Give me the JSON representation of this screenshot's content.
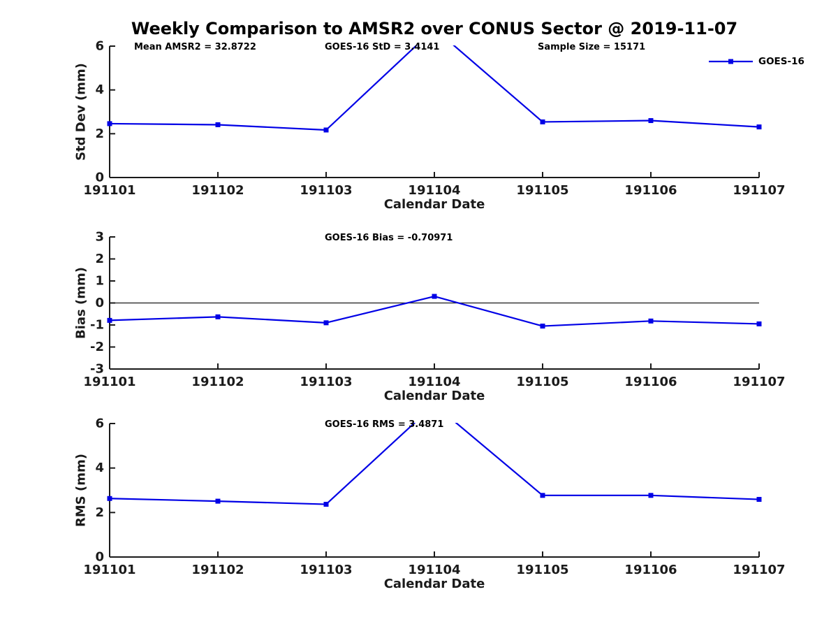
{
  "figure": {
    "title": "Weekly Comparison to AMSR2 over CONUS Sector @ 2019-11-07",
    "xlabel": "Calendar Date",
    "legend_label": "GOES-16",
    "colors": {
      "line": "#0000E6",
      "axis": "#1A1A1A",
      "text": "#000000",
      "background": "#FFFFFF"
    }
  },
  "chart_data": [
    {
      "id": "stddev",
      "type": "line",
      "title": "",
      "xlabel": "Calendar Date",
      "ylabel": "Std Dev (mm)",
      "categories": [
        "191101",
        "191102",
        "191103",
        "191104",
        "191105",
        "191106",
        "191107"
      ],
      "series": [
        {
          "name": "GOES-16",
          "marker": "square",
          "values": [
            2.46,
            2.41,
            2.17,
            6.8,
            2.54,
            2.6,
            2.31
          ]
        }
      ],
      "ylim": [
        0,
        6
      ],
      "yticks": [
        0,
        2,
        4,
        6
      ],
      "grid": false,
      "clip_to_axes": true,
      "legend": {
        "show": true,
        "label": "GOES-16",
        "position": "top-right-inside"
      },
      "annotations": [
        {
          "text": "Mean AMSR2 = 32.8722"
        },
        {
          "text": "GOES-16 StD = 3.4141"
        },
        {
          "text": "Sample Size = 15171"
        }
      ]
    },
    {
      "id": "bias",
      "type": "line",
      "title": "",
      "xlabel": "Calendar Date",
      "ylabel": "Bias (mm)",
      "categories": [
        "191101",
        "191102",
        "191103",
        "191104",
        "191105",
        "191106",
        "191107"
      ],
      "series": [
        {
          "name": "GOES-16",
          "marker": "square",
          "values": [
            -0.79,
            -0.63,
            -0.9,
            0.3,
            -1.05,
            -0.82,
            -0.95
          ]
        }
      ],
      "ylim": [
        -3,
        3
      ],
      "yticks": [
        -3,
        -2,
        -1,
        0,
        1,
        2,
        3
      ],
      "grid": false,
      "zero_line": true,
      "clip_to_axes": true,
      "legend": {
        "show": false
      },
      "annotations": [
        {
          "text": "GOES-16 Bias  = -0.70971"
        }
      ]
    },
    {
      "id": "rms",
      "type": "line",
      "title": "",
      "xlabel": "Calendar Date",
      "ylabel": "RMS (mm)",
      "categories": [
        "191101",
        "191102",
        "191103",
        "191104",
        "191105",
        "191106",
        "191107"
      ],
      "series": [
        {
          "name": "GOES-16",
          "marker": "square",
          "values": [
            2.63,
            2.51,
            2.37,
            6.85,
            2.77,
            2.77,
            2.59
          ]
        }
      ],
      "ylim": [
        0,
        6
      ],
      "yticks": [
        0,
        2,
        4,
        6
      ],
      "grid": false,
      "clip_to_axes": true,
      "legend": {
        "show": false
      },
      "annotations": [
        {
          "text": "GOES-16 RMS = 3.4871"
        }
      ]
    }
  ]
}
